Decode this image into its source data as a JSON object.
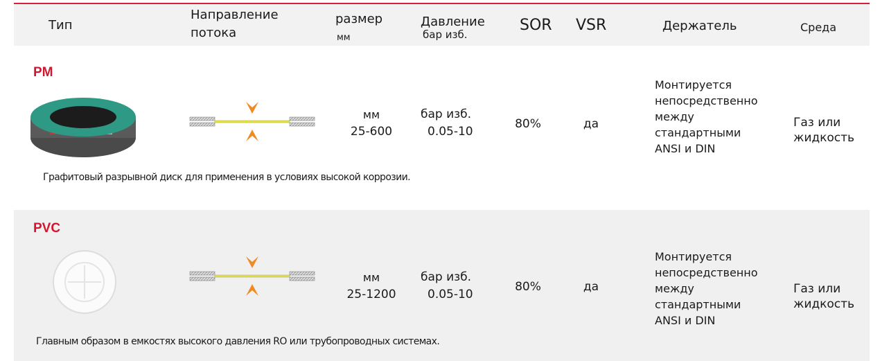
{
  "header": {
    "columns": [
      [
        "Тип"
      ],
      [
        "Направление",
        "потока"
      ],
      [
        "размер",
        "мм"
      ],
      [
        "Давление",
        "бар изб."
      ],
      [
        "SOR"
      ],
      [
        "VSR"
      ],
      [
        "Держатель"
      ],
      [
        "Среда"
      ]
    ]
  },
  "rows": [
    {
      "name": "PM",
      "size": [
        "мм",
        "25-600"
      ],
      "pressure": [
        "бар изб.",
        "0.05-10"
      ],
      "sor": "80%",
      "vsr": "да",
      "holder": [
        "Монтируется",
        "непосредственно",
        "между",
        "стандартными",
        "ANSI и DIN"
      ],
      "medium": [
        "Газ или",
        "жидкость"
      ],
      "description": "Графитовый разрывной диск для применения в условиях высокой коррозии."
    },
    {
      "name": "PVC",
      "size": [
        "мм",
        "25-1200"
      ],
      "pressure": [
        "бар изб.",
        "0.05-10"
      ],
      "sor": "80%",
      "vsr": "да",
      "holder": [
        "Монтируется",
        "непосредственно",
        "между",
        "стандартными",
        "ANSI и DIN"
      ],
      "medium": [
        "Газ или",
        "жидкость"
      ],
      "description": "Главным образом в емкостях высокого давления RO или трубопроводных системах."
    }
  ]
}
